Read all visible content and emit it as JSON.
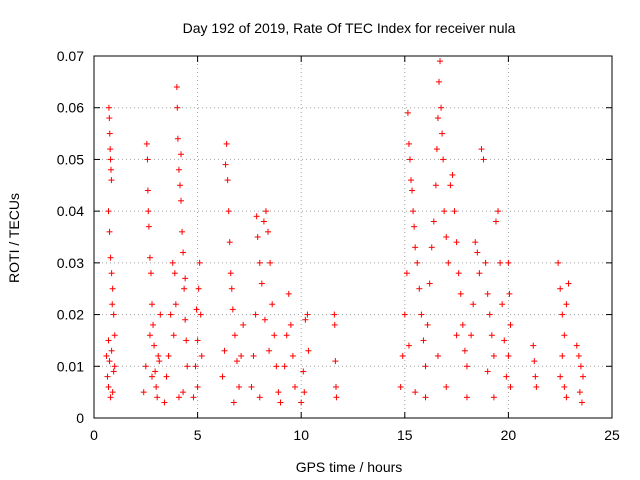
{
  "chart_data": {
    "type": "scatter",
    "title": "Day 192 of 2019, Rate Of TEC Index for receiver nula",
    "xlabel": "GPS time / hours",
    "ylabel": "ROTI / TECUs",
    "xlim": [
      0,
      25
    ],
    "ylim": [
      0,
      0.07
    ],
    "x_ticks": [
      0,
      5,
      10,
      15,
      20,
      25
    ],
    "x_tick_labels": [
      "0",
      "5",
      "10",
      "15",
      "20",
      "25"
    ],
    "y_ticks": [
      0,
      0.01,
      0.02,
      0.03,
      0.04,
      0.05,
      0.06,
      0.07
    ],
    "y_tick_labels": [
      "0",
      "0.01",
      "0.02",
      "0.03",
      "0.04",
      "0.05",
      "0.06",
      "0.07"
    ],
    "grid": true,
    "marker": "+",
    "color": "#ff0000",
    "series": [
      {
        "points": [
          [
            0.6,
            0.012
          ],
          [
            0.65,
            0.008
          ],
          [
            0.7,
            0.015
          ],
          [
            0.72,
            0.06
          ],
          [
            0.74,
            0.058
          ],
          [
            0.76,
            0.055
          ],
          [
            0.78,
            0.052
          ],
          [
            0.8,
            0.05
          ],
          [
            0.82,
            0.048
          ],
          [
            0.84,
            0.046
          ],
          [
            0.7,
            0.04
          ],
          [
            0.75,
            0.036
          ],
          [
            0.8,
            0.031
          ],
          [
            0.85,
            0.028
          ],
          [
            0.9,
            0.025
          ],
          [
            0.95,
            0.02
          ],
          [
            1.0,
            0.016
          ],
          [
            0.7,
            0.006
          ],
          [
            0.8,
            0.004
          ],
          [
            0.9,
            0.005
          ],
          [
            1.0,
            0.01
          ],
          [
            0.85,
            0.013
          ],
          [
            0.95,
            0.009
          ],
          [
            0.75,
            0.011
          ],
          [
            0.88,
            0.022
          ],
          [
            2.4,
            0.005
          ],
          [
            2.5,
            0.01
          ],
          [
            2.55,
            0.053
          ],
          [
            2.58,
            0.05
          ],
          [
            2.6,
            0.044
          ],
          [
            2.62,
            0.04
          ],
          [
            2.65,
            0.037
          ],
          [
            2.7,
            0.031
          ],
          [
            2.75,
            0.028
          ],
          [
            2.8,
            0.022
          ],
          [
            2.85,
            0.018
          ],
          [
            2.9,
            0.014
          ],
          [
            2.95,
            0.009
          ],
          [
            3.0,
            0.006
          ],
          [
            3.1,
            0.012
          ],
          [
            3.2,
            0.02
          ],
          [
            2.7,
            0.016
          ],
          [
            2.8,
            0.008
          ],
          [
            3.05,
            0.004
          ],
          [
            3.15,
            0.011
          ],
          [
            3.4,
            0.003
          ],
          [
            3.5,
            0.008
          ],
          [
            3.6,
            0.012
          ],
          [
            3.7,
            0.02
          ],
          [
            3.8,
            0.03
          ],
          [
            3.9,
            0.028
          ],
          [
            4.0,
            0.064
          ],
          [
            4.02,
            0.06
          ],
          [
            4.05,
            0.054
          ],
          [
            4.1,
            0.048
          ],
          [
            4.15,
            0.045
          ],
          [
            4.2,
            0.042
          ],
          [
            4.25,
            0.036
          ],
          [
            4.3,
            0.032
          ],
          [
            4.35,
            0.025
          ],
          [
            4.4,
            0.019
          ],
          [
            4.45,
            0.015
          ],
          [
            4.5,
            0.01
          ],
          [
            4.3,
            0.005
          ],
          [
            4.2,
            0.051
          ],
          [
            3.95,
            0.022
          ],
          [
            3.85,
            0.016
          ],
          [
            4.1,
            0.004
          ],
          [
            4.4,
            0.027
          ],
          [
            4.8,
            0.004
          ],
          [
            4.9,
            0.01
          ],
          [
            5.0,
            0.015
          ],
          [
            5.05,
            0.025
          ],
          [
            5.1,
            0.03
          ],
          [
            5.15,
            0.02
          ],
          [
            5.2,
            0.012
          ],
          [
            5.0,
            0.006
          ],
          [
            4.95,
            0.021
          ],
          [
            6.2,
            0.008
          ],
          [
            6.3,
            0.013
          ],
          [
            6.35,
            0.049
          ],
          [
            6.4,
            0.053
          ],
          [
            6.45,
            0.046
          ],
          [
            6.5,
            0.04
          ],
          [
            6.55,
            0.034
          ],
          [
            6.6,
            0.028
          ],
          [
            6.7,
            0.021
          ],
          [
            6.8,
            0.016
          ],
          [
            6.9,
            0.011
          ],
          [
            7.0,
            0.006
          ],
          [
            7.1,
            0.012
          ],
          [
            7.2,
            0.018
          ],
          [
            6.75,
            0.003
          ],
          [
            6.65,
            0.025
          ],
          [
            7.6,
            0.006
          ],
          [
            7.7,
            0.012
          ],
          [
            7.8,
            0.02
          ],
          [
            7.85,
            0.039
          ],
          [
            7.9,
            0.035
          ],
          [
            8.0,
            0.03
          ],
          [
            8.1,
            0.026
          ],
          [
            8.2,
            0.038
          ],
          [
            8.3,
            0.04
          ],
          [
            8.4,
            0.036
          ],
          [
            8.5,
            0.03
          ],
          [
            8.6,
            0.022
          ],
          [
            8.7,
            0.016
          ],
          [
            8.8,
            0.01
          ],
          [
            8.9,
            0.005
          ],
          [
            8.0,
            0.004
          ],
          [
            8.45,
            0.013
          ],
          [
            8.25,
            0.019
          ],
          [
            9.0,
            0.003
          ],
          [
            9.2,
            0.01
          ],
          [
            9.4,
            0.024
          ],
          [
            9.5,
            0.018
          ],
          [
            9.6,
            0.012
          ],
          [
            9.7,
            0.006
          ],
          [
            9.3,
            0.016
          ],
          [
            10.0,
            0.003
          ],
          [
            10.1,
            0.009
          ],
          [
            10.2,
            0.019
          ],
          [
            10.3,
            0.02
          ],
          [
            10.35,
            0.013
          ],
          [
            10.15,
            0.005
          ],
          [
            11.6,
            0.02
          ],
          [
            11.62,
            0.018
          ],
          [
            11.65,
            0.011
          ],
          [
            11.68,
            0.006
          ],
          [
            11.7,
            0.004
          ],
          [
            14.8,
            0.006
          ],
          [
            14.9,
            0.012
          ],
          [
            15.0,
            0.02
          ],
          [
            15.1,
            0.028
          ],
          [
            15.15,
            0.059
          ],
          [
            15.2,
            0.053
          ],
          [
            15.25,
            0.05
          ],
          [
            15.3,
            0.046
          ],
          [
            15.35,
            0.044
          ],
          [
            15.4,
            0.04
          ],
          [
            15.45,
            0.037
          ],
          [
            15.5,
            0.033
          ],
          [
            15.6,
            0.03
          ],
          [
            15.7,
            0.025
          ],
          [
            15.8,
            0.02
          ],
          [
            15.9,
            0.015
          ],
          [
            16.0,
            0.01
          ],
          [
            16.1,
            0.018
          ],
          [
            16.2,
            0.026
          ],
          [
            16.3,
            0.033
          ],
          [
            16.4,
            0.038
          ],
          [
            16.5,
            0.045
          ],
          [
            16.55,
            0.052
          ],
          [
            16.6,
            0.058
          ],
          [
            16.65,
            0.065
          ],
          [
            16.7,
            0.069
          ],
          [
            16.75,
            0.06
          ],
          [
            16.8,
            0.055
          ],
          [
            16.85,
            0.05
          ],
          [
            16.9,
            0.04
          ],
          [
            17.0,
            0.035
          ],
          [
            17.1,
            0.03
          ],
          [
            17.2,
            0.045
          ],
          [
            17.3,
            0.047
          ],
          [
            17.4,
            0.04
          ],
          [
            17.5,
            0.034
          ],
          [
            17.6,
            0.028
          ],
          [
            17.7,
            0.024
          ],
          [
            17.8,
            0.018
          ],
          [
            17.9,
            0.013
          ],
          [
            18.0,
            0.01
          ],
          [
            18.2,
            0.016
          ],
          [
            18.4,
            0.034
          ],
          [
            18.5,
            0.032
          ],
          [
            18.6,
            0.028
          ],
          [
            18.7,
            0.052
          ],
          [
            18.8,
            0.05
          ],
          [
            18.9,
            0.03
          ],
          [
            19.0,
            0.024
          ],
          [
            19.1,
            0.02
          ],
          [
            19.2,
            0.016
          ],
          [
            19.3,
            0.012
          ],
          [
            19.4,
            0.038
          ],
          [
            19.5,
            0.04
          ],
          [
            19.6,
            0.03
          ],
          [
            19.7,
            0.022
          ],
          [
            19.8,
            0.015
          ],
          [
            19.9,
            0.008
          ],
          [
            19.3,
            0.004
          ],
          [
            15.5,
            0.005
          ],
          [
            16.0,
            0.004
          ],
          [
            17.0,
            0.006
          ],
          [
            18.0,
            0.004
          ],
          [
            16.6,
            0.012
          ],
          [
            17.5,
            0.016
          ],
          [
            18.3,
            0.022
          ],
          [
            15.2,
            0.014
          ],
          [
            19.0,
            0.009
          ],
          [
            20.0,
            0.03
          ],
          [
            20.05,
            0.024
          ],
          [
            20.1,
            0.018
          ],
          [
            20.0,
            0.012
          ],
          [
            20.1,
            0.006
          ],
          [
            21.2,
            0.014
          ],
          [
            21.25,
            0.011
          ],
          [
            21.3,
            0.008
          ],
          [
            21.35,
            0.006
          ],
          [
            22.4,
            0.03
          ],
          [
            22.5,
            0.025
          ],
          [
            22.6,
            0.02
          ],
          [
            22.7,
            0.016
          ],
          [
            22.8,
            0.022
          ],
          [
            22.9,
            0.026
          ],
          [
            22.6,
            0.012
          ],
          [
            22.5,
            0.008
          ],
          [
            22.8,
            0.004
          ],
          [
            22.7,
            0.006
          ],
          [
            23.3,
            0.014
          ],
          [
            23.4,
            0.012
          ],
          [
            23.5,
            0.01
          ],
          [
            23.6,
            0.008
          ],
          [
            23.45,
            0.005
          ],
          [
            23.55,
            0.003
          ]
        ]
      }
    ]
  }
}
